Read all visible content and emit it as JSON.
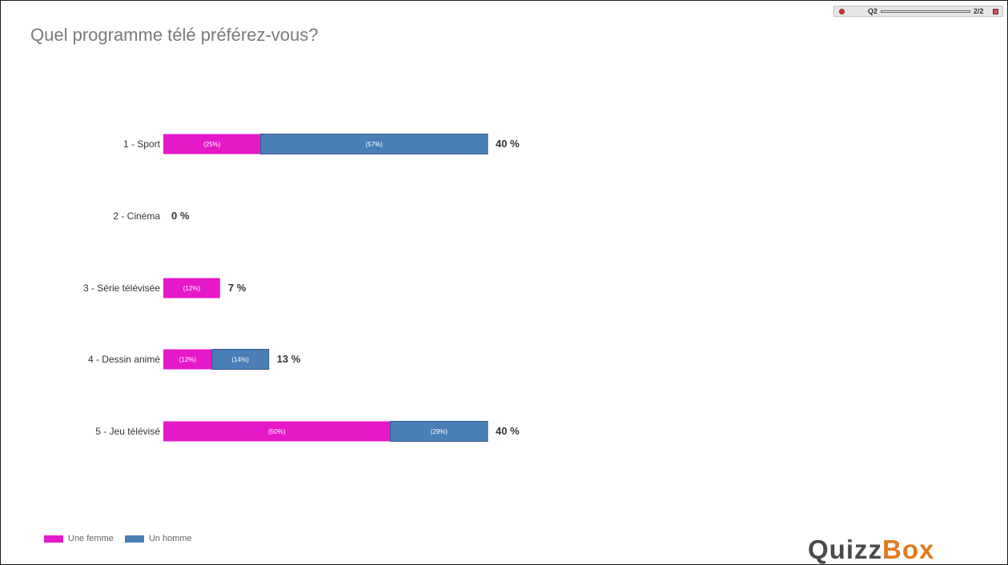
{
  "title": "Quel programme télé préférez-vous?",
  "toolbar": {
    "question_label": "Q2",
    "page_label": "2/2",
    "icons": [
      "record-icon",
      "close-icon"
    ]
  },
  "colors": {
    "femme": "#e619c8",
    "homme": "#4a7fb5",
    "label_text": "#333333",
    "title_text": "#7a7a7a",
    "logo_dark": "#4a4a4a",
    "logo_orange": "#e07c1f"
  },
  "legend": {
    "femme": "Une femme",
    "homme": "Un homme"
  },
  "logo": {
    "part1": "Quizz",
    "part2": "Box"
  },
  "chart_data": {
    "type": "bar",
    "orientation": "horizontal",
    "stacked": true,
    "title": "Quel programme télé préférez-vous?",
    "categories": [
      "1 - Sport",
      "2 - Cinéma",
      "3 - Série télévisée",
      "4 - Dessin animé",
      "5 - Jeu télévisé"
    ],
    "totals": [
      40,
      0,
      7,
      13,
      40
    ],
    "total_labels": [
      "40 %",
      "0 %",
      "7 %",
      "13 %",
      "40 %"
    ],
    "series": [
      {
        "name": "Une femme",
        "values": [
          12,
          0,
          7,
          6,
          28
        ],
        "labels": [
          "(25%)",
          "",
          "(12%)",
          "(12%)",
          "(50%)"
        ]
      },
      {
        "name": "Un homme",
        "values": [
          28,
          0,
          0,
          7,
          12
        ],
        "labels": [
          "(57%)",
          "",
          "",
          "(14%)",
          "(29%)"
        ]
      }
    ],
    "xlim": [
      0,
      100
    ],
    "grid": false,
    "legend_position": "bottom-left"
  }
}
